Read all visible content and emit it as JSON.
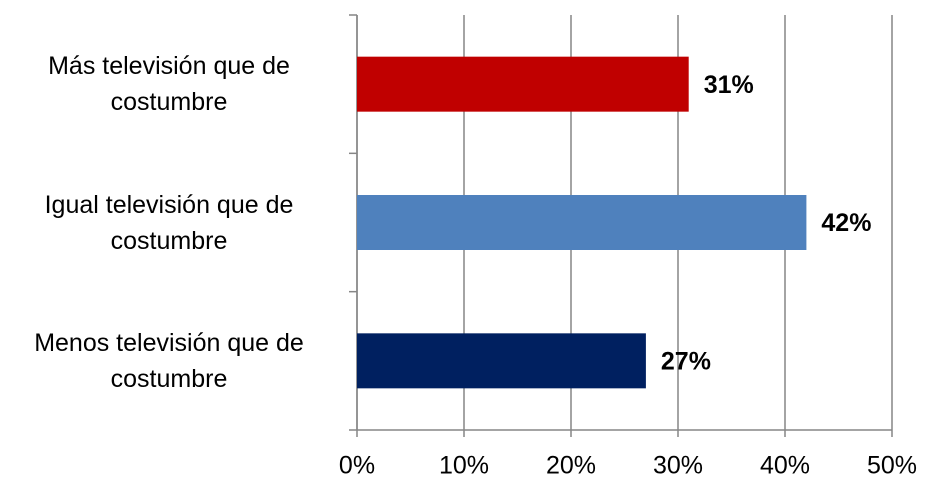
{
  "chart_data": {
    "type": "bar",
    "orientation": "horizontal",
    "categories": [
      "Más televisión que de costumbre",
      "Igual televisión que de costumbre",
      "Menos televisión que de costumbre"
    ],
    "values": [
      31,
      42,
      27
    ],
    "value_labels": [
      "31%",
      "42%",
      "27%"
    ],
    "colors": [
      "#c00000",
      "#4f81bd",
      "#002060"
    ],
    "xlim": [
      0,
      50
    ],
    "xticks": [
      {
        "value": 0,
        "label": "0%"
      },
      {
        "value": 10,
        "label": "10%"
      },
      {
        "value": 20,
        "label": "20%"
      },
      {
        "value": 30,
        "label": "30%"
      },
      {
        "value": 40,
        "label": "40%"
      },
      {
        "value": 50,
        "label": "50%"
      }
    ],
    "grid": true
  }
}
